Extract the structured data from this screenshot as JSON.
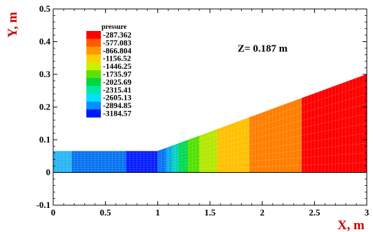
{
  "chart_data": {
    "type": "heatmap",
    "title": "",
    "xlabel": "X, m",
    "ylabel": "Y, m",
    "xlim": [
      0,
      3
    ],
    "ylim": [
      -0.1,
      0.5
    ],
    "x_ticks": [
      "0",
      "0.5",
      "1",
      "1.5",
      "2",
      "2.5",
      "3"
    ],
    "y_ticks": [
      "-0.1",
      "0",
      "0.1",
      "0.2",
      "0.3",
      "0.4",
      "0.5"
    ],
    "annotation": "Z= 0.187 m",
    "legend": {
      "title": "pressure",
      "levels": [
        "-287.362",
        "-577.083",
        "-866.804",
        "-1156.52",
        "-1446.25",
        "-1735.97",
        "-2025.69",
        "-2315.41",
        "-2605.13",
        "-2894.85",
        "-3184.57"
      ],
      "colors": [
        "#ff0000",
        "#ff5a00",
        "#ff9800",
        "#ffd000",
        "#c8f000",
        "#60e000",
        "#00d840",
        "#00e8a8",
        "#00e0ff",
        "#0090ff",
        "#0018ff"
      ]
    },
    "geometry": {
      "channel_x": [
        0,
        1
      ],
      "channel_y": [
        0,
        0.065
      ],
      "diffuser_x": [
        1,
        3
      ],
      "diffuser_top_y": [
        0.065,
        0.3
      ],
      "bottom_y": 0
    },
    "field": [
      {
        "x0": 0.0,
        "x1": 0.18,
        "color": "#22b4f2"
      },
      {
        "x0": 0.18,
        "x1": 0.7,
        "color": "#0070f0"
      },
      {
        "x0": 0.7,
        "x1": 1.0,
        "color": "#0018ff"
      },
      {
        "x0": 1.0,
        "x1": 1.08,
        "color": "#0070f0"
      },
      {
        "x0": 1.08,
        "x1": 1.14,
        "color": "#00a8e8"
      },
      {
        "x0": 1.14,
        "x1": 1.2,
        "color": "#00d0c0"
      },
      {
        "x0": 1.2,
        "x1": 1.29,
        "color": "#00d850"
      },
      {
        "x0": 1.29,
        "x1": 1.4,
        "color": "#50e000"
      },
      {
        "x0": 1.4,
        "x1": 1.57,
        "color": "#b4e800"
      },
      {
        "x0": 1.57,
        "x1": 1.88,
        "color": "#ffc000"
      },
      {
        "x0": 1.88,
        "x1": 2.38,
        "color": "#ff7e00"
      },
      {
        "x0": 2.38,
        "x1": 3.0,
        "color": "#ff0000"
      }
    ]
  }
}
